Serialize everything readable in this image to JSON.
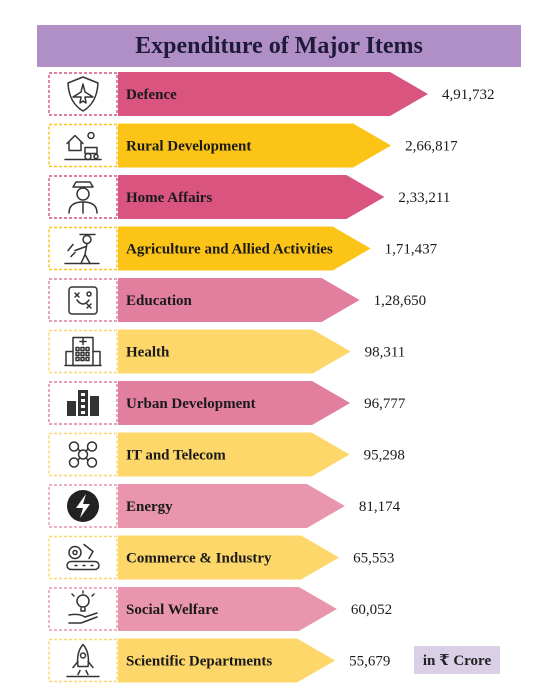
{
  "title": "Expenditure of Major Items",
  "unit_note": "in ₹ Crore",
  "colors": {
    "title_bg": "#b08fc7",
    "deep_pink": "#d9557f",
    "mid_pink": "#e27f9e",
    "light_pink": "#e895ad",
    "yellow": "#fbc417",
    "light_yellow": "#fdd76a"
  },
  "chart_data": {
    "type": "bar",
    "orientation": "horizontal",
    "title": "Expenditure of Major Items",
    "unit": "in ₹ Crore",
    "categories": [
      "Defence",
      "Rural Development",
      "Home Affairs",
      "Agriculture and Allied Activities",
      "Education",
      "Health",
      "Urban Development",
      "IT and Telecom",
      "Energy",
      "Commerce & Industry",
      "Social Welfare",
      "Scientific Departments"
    ],
    "values": [
      491732,
      266817,
      233211,
      171437,
      128650,
      98311,
      96777,
      95298,
      81174,
      65553,
      60052,
      55679
    ],
    "value_labels": [
      "4,91,732",
      "2,66,817",
      "2,33,211",
      "1,71,437",
      "1,28,650",
      "98,311",
      "96,777",
      "95,298",
      "81,174",
      "65,553",
      "60,052",
      "55,679"
    ],
    "icons": [
      "shield-jet-icon",
      "rural-house-tractor-icon",
      "police-officer-icon",
      "farmer-icon",
      "education-board-icon",
      "hospital-icon",
      "city-buildings-icon",
      "network-people-icon",
      "energy-bolt-icon",
      "industry-gears-icon",
      "welfare-hand-bulb-icon",
      "rocket-launch-icon"
    ],
    "bar_colors": [
      "#d9557f",
      "#fbc417",
      "#d9557f",
      "#fbc417",
      "#e27f9e",
      "#fdd76a",
      "#e27f9e",
      "#fdd76a",
      "#e895ad",
      "#fdd76a",
      "#e895ad",
      "#fdd76a"
    ],
    "legend": false,
    "grid": false
  }
}
